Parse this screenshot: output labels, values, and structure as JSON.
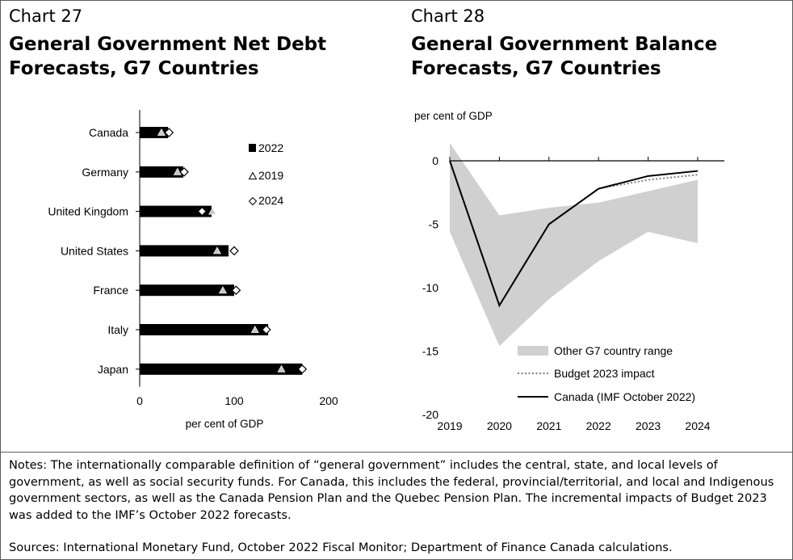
{
  "left": {
    "chart_number": "Chart 27",
    "title_line1": "General Government Net Debt",
    "title_line2": "Forecasts, G7 Countries"
  },
  "right": {
    "chart_number": "Chart 28",
    "title_line1": "General Government Balance",
    "title_line2": "Forecasts, G7 Countries"
  },
  "notes": "Notes: The internationally comparable definition of “general government” includes the central, state, and local levels of government, as well as social security funds. For Canada, this includes the federal, provincial/territorial, and local and Indigenous government sectors, as well as the Canada Pension Plan and the Quebec Pension Plan. The incremental impacts of Budget 2023 was added to the IMF’s October 2022 forecasts.",
  "sources": "Sources: International Monetary Fund, October 2022 Fiscal Monitor; Department of Finance Canada calculations.",
  "chart_data": [
    {
      "type": "bar",
      "orientation": "horizontal",
      "xlabel": "per cent of GDP",
      "xlim": [
        0,
        200
      ],
      "xticks": [
        0,
        100,
        200
      ],
      "categories": [
        "Canada",
        "Germany",
        "United Kingdom",
        "United States",
        "France",
        "Italy",
        "Japan"
      ],
      "series": [
        {
          "name": "2022",
          "marker": "bar",
          "color": "#000000",
          "values": [
            30,
            46,
            76,
            94,
            100,
            136,
            172
          ]
        },
        {
          "name": "2019",
          "marker": "triangle",
          "values": [
            23,
            40,
            77,
            82,
            88,
            122,
            150
          ]
        },
        {
          "name": "2024",
          "marker": "diamond",
          "values": [
            31,
            47,
            66,
            100,
            102,
            134,
            172
          ]
        }
      ],
      "legend_position": "top-right"
    },
    {
      "type": "line",
      "ylabel": "per cent of GDP",
      "ylim": [
        -20,
        2
      ],
      "yticks": [
        0,
        -5,
        -10,
        -15,
        -20
      ],
      "x": [
        "2019",
        "2020",
        "2021",
        "2022",
        "2023",
        "2024"
      ],
      "range_band": {
        "name": "Other G7 country range",
        "color": "#d0d0d0",
        "upper": [
          1.4,
          -4.3,
          -3.7,
          -3.3,
          -2.4,
          -1.5
        ],
        "lower": [
          -5.6,
          -14.6,
          -10.9,
          -7.9,
          -5.6,
          -6.5
        ]
      },
      "series": [
        {
          "name": "Budget 2023 impact",
          "style": "dotted",
          "color": "#808080",
          "values": [
            0,
            -11.4,
            -5.0,
            -2.2,
            -1.5,
            -1.1
          ]
        },
        {
          "name": "Canada (IMF October 2022)",
          "style": "solid",
          "color": "#000000",
          "values": [
            0,
            -11.4,
            -5.0,
            -2.2,
            -1.2,
            -0.8
          ]
        }
      ],
      "legend_position": "bottom-right"
    }
  ]
}
